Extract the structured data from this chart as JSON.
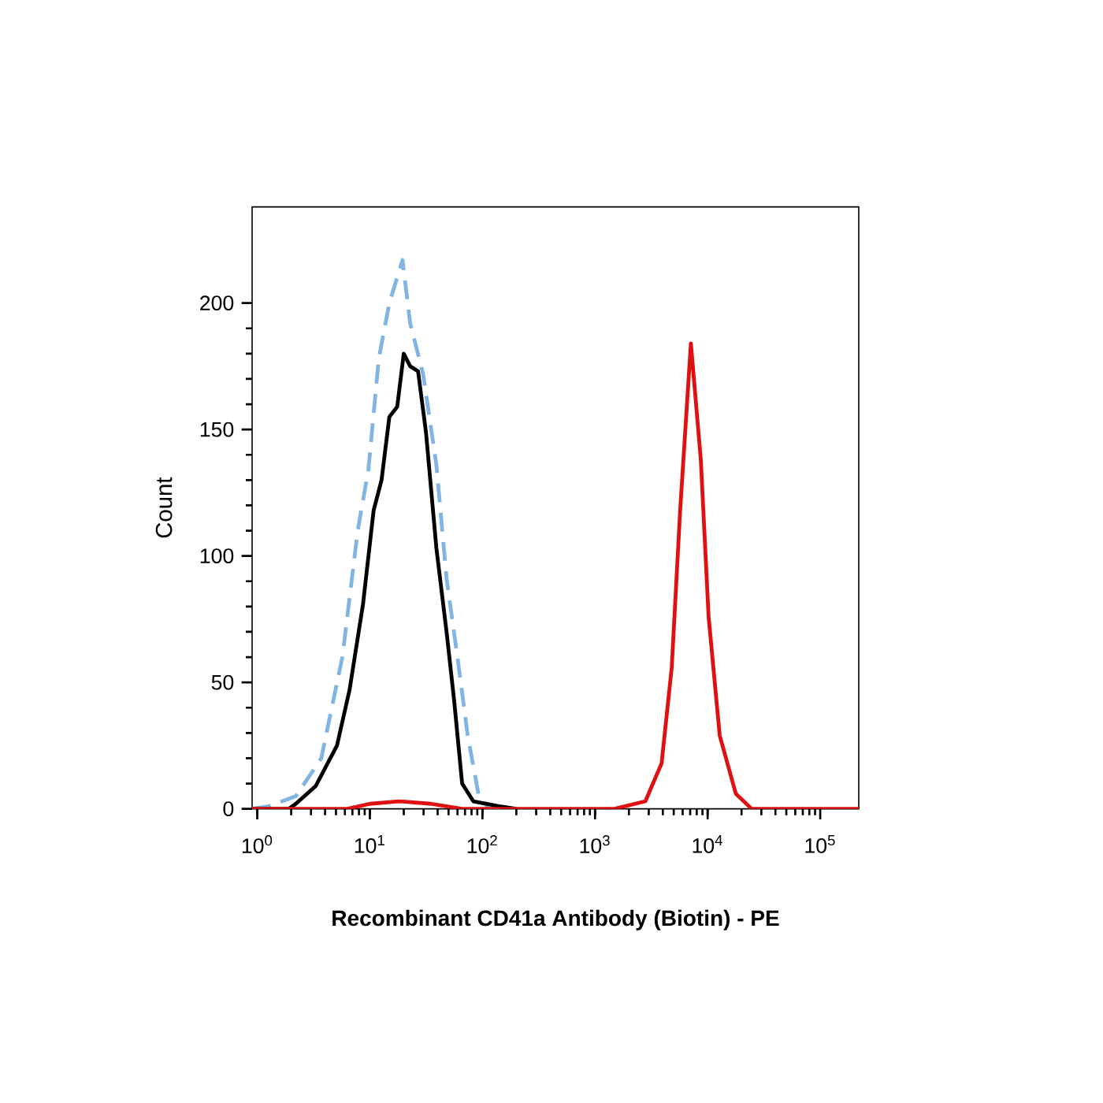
{
  "chart_data": {
    "type": "line",
    "xlabel": "Recombinant CD41a Antibody (Biotin) - PE",
    "ylabel": "Count",
    "log": "x",
    "xlim": [
      0.9,
      220000
    ],
    "ylim": [
      0,
      238
    ],
    "xticks": [
      {
        "value": 1,
        "label": "10$^{0}$"
      },
      {
        "value": 10,
        "label": "10$^{1}$"
      },
      {
        "value": 100,
        "label": "10$^{2}$"
      },
      {
        "value": 1000,
        "label": "10$^{3}$"
      },
      {
        "value": 10000,
        "label": "10$^{4}$"
      },
      {
        "value": 100000,
        "label": "10$^{5}$"
      }
    ],
    "yticks": [
      0,
      50,
      100,
      150,
      200
    ],
    "series": [
      {
        "color": "#7fb4e3",
        "line_style": "dashed",
        "x": [
          0.9,
          1.26,
          2.2,
          3.7,
          5.7,
          7.8,
          9.7,
          12,
          14.9,
          19.5,
          22.8,
          29.7,
          39,
          48,
          60,
          74,
          92,
          114,
          200
        ],
        "values": [
          0,
          1,
          5,
          20,
          60,
          110,
          134,
          178,
          200,
          217,
          192,
          172,
          136,
          91,
          60,
          29,
          6,
          0,
          0
        ]
      },
      {
        "color": "#000000",
        "line_style": "solid",
        "x": [
          0.9,
          1.9,
          2.2,
          3.3,
          5.1,
          6.6,
          8.7,
          10.8,
          12.7,
          14.9,
          17.5,
          20,
          22.8,
          26.8,
          31.5,
          39,
          48,
          56,
          66,
          83,
          141,
          200
        ],
        "values": [
          0,
          0,
          2,
          9,
          25,
          47,
          81,
          118,
          130,
          155,
          159,
          180,
          175,
          173,
          149,
          103,
          70,
          43,
          10,
          3,
          1,
          0
        ]
      },
      {
        "color": "#e01010",
        "line_style": "solid",
        "x": [
          0.9,
          6.3,
          10,
          18,
          35,
          66,
          1490,
          2800,
          3900,
          4800,
          5700,
          7100,
          8700,
          10200,
          12800,
          17800,
          24600,
          220000
        ],
        "values": [
          0,
          0,
          2,
          3,
          2,
          0,
          0,
          3,
          18,
          56,
          118,
          184,
          138,
          76,
          29,
          6,
          0,
          0
        ]
      }
    ]
  }
}
